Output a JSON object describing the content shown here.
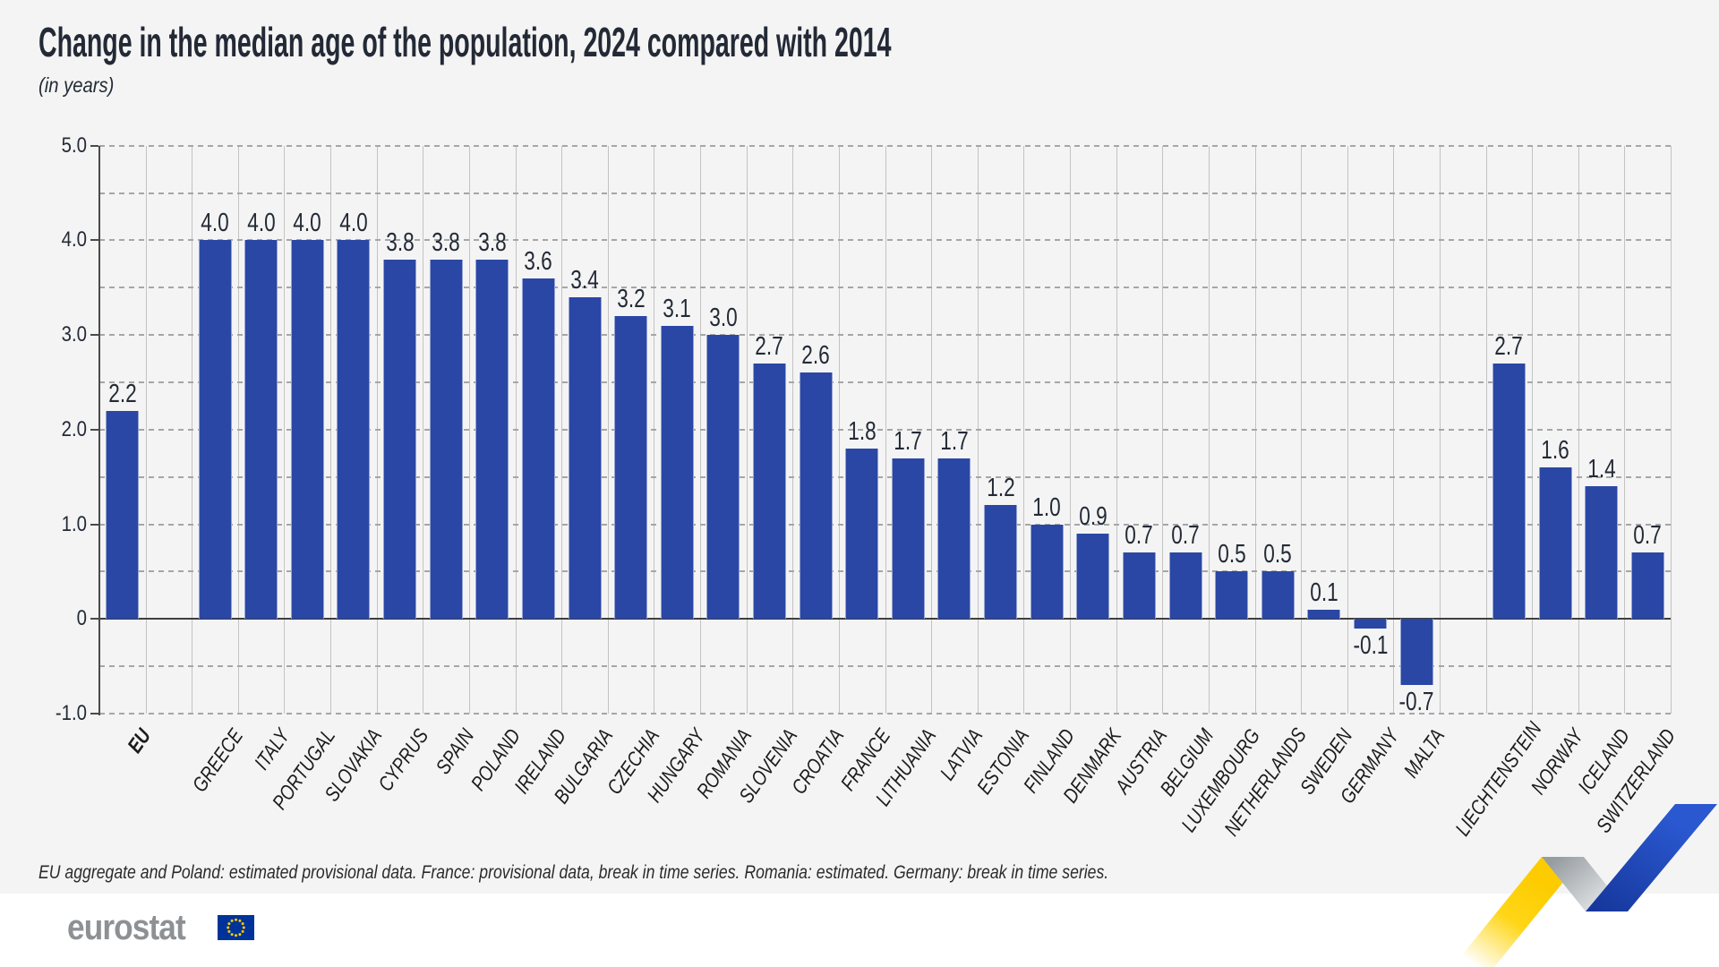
{
  "title": "Change in the median age of the population, 2024 compared with 2014",
  "subtitle": "(in years)",
  "footnote": "EU aggregate and Poland: estimated provisional data. France: provisional data, break in time series. Romania: estimated. Germany: break in time series.",
  "logo": {
    "text": "eurostat"
  },
  "colors": {
    "bar": "#2a47a5",
    "background": "#f4f4f4",
    "axis": "#4a4a4a",
    "vertical_grid": "#c3c3c3",
    "horizontal_grid": "#a6a6a6",
    "text": "#232a36",
    "logo_gray": "#8e9194",
    "flag_blue": "#003399",
    "star_yellow": "#ffcc00",
    "ribbon_yellow": "#ffd617",
    "ribbon_blue": "#2453c4"
  },
  "chart_data": {
    "type": "bar",
    "title": "Change in the median age of the population, 2024 compared with 2014",
    "subtitle": "(in years)",
    "unit": "years",
    "ylim": [
      -1.0,
      5.0
    ],
    "yticks": [
      "5.0",
      "4.0",
      "3.0",
      "2.0",
      "1.0",
      "0",
      "-1.0"
    ],
    "grid": "horizontal dashed lines every 0.5; solid vertical line per category column",
    "legend": "none",
    "bar_color": "#2a47a5",
    "columns": [
      {
        "label": "EU",
        "value": 2.2,
        "bold": true
      },
      {
        "label": "",
        "value": null
      },
      {
        "label": "GREECE",
        "value": 4.0
      },
      {
        "label": "ITALY",
        "value": 4.0
      },
      {
        "label": "PORTUGAL",
        "value": 4.0
      },
      {
        "label": "SLOVAKIA",
        "value": 4.0
      },
      {
        "label": "CYPRUS",
        "value": 3.8
      },
      {
        "label": "SPAIN",
        "value": 3.8
      },
      {
        "label": "POLAND",
        "value": 3.8
      },
      {
        "label": "IRELAND",
        "value": 3.6
      },
      {
        "label": "BULGARIA",
        "value": 3.4
      },
      {
        "label": "CZECHIA",
        "value": 3.2
      },
      {
        "label": "HUNGARY",
        "value": 3.1
      },
      {
        "label": "ROMANIA",
        "value": 3.0
      },
      {
        "label": "SLOVENIA",
        "value": 2.7
      },
      {
        "label": "CROATIA",
        "value": 2.6
      },
      {
        "label": "FRANCE",
        "value": 1.8
      },
      {
        "label": "LITHUANIA",
        "value": 1.7
      },
      {
        "label": "LATVIA",
        "value": 1.7
      },
      {
        "label": "ESTONIA",
        "value": 1.2
      },
      {
        "label": "FINLAND",
        "value": 1.0
      },
      {
        "label": "DENMARK",
        "value": 0.9
      },
      {
        "label": "AUSTRIA",
        "value": 0.7
      },
      {
        "label": "BELGIUM",
        "value": 0.7
      },
      {
        "label": "LUXEMBOURG",
        "value": 0.5
      },
      {
        "label": "NETHERLANDS",
        "value": 0.5
      },
      {
        "label": "SWEDEN",
        "value": 0.1
      },
      {
        "label": "GERMANY",
        "value": -0.1
      },
      {
        "label": "MALTA",
        "value": -0.7
      },
      {
        "label": "",
        "value": null
      },
      {
        "label": "LIECHTENSTEIN",
        "value": 2.7
      },
      {
        "label": "NORWAY",
        "value": 1.6
      },
      {
        "label": "ICELAND",
        "value": 1.4
      },
      {
        "label": "SWITZERLAND",
        "value": 0.7
      }
    ]
  }
}
